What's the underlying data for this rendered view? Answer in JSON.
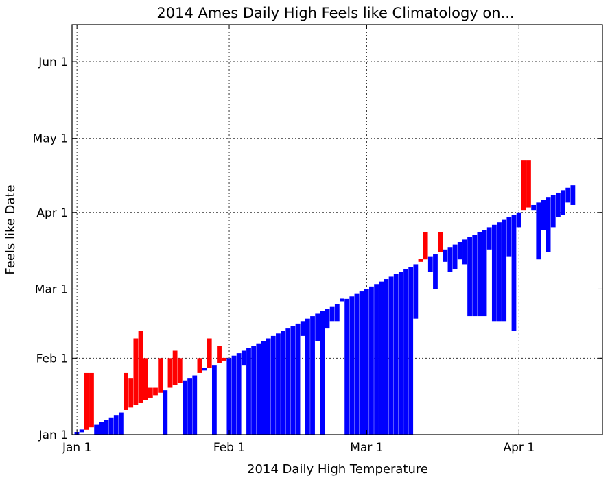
{
  "chart_data": {
    "type": "bar",
    "title": "2014 Ames Daily High Feels like Climatology on...",
    "xlabel": "2014 Daily High Temperature",
    "ylabel": "Feels like Date",
    "x_ticks": [
      "Jan 1",
      "Feb 1",
      "Mar 1",
      "Apr 1"
    ],
    "y_ticks": [
      "Jan 1",
      "Feb 1",
      "Mar 1",
      "Apr 1",
      "May 1",
      "Jun 1"
    ],
    "x_range": [
      "2013-12-31",
      "2014-04-18"
    ],
    "y_range": [
      "2014-01-01",
      "2014-06-16"
    ],
    "grid": true,
    "colors": {
      "warmer": "#ff0000",
      "colder": "#0000ff"
    },
    "series": [
      {
        "name": "Daily High Feels like Date",
        "x_dates": [
          "2014-01-01",
          "2014-01-02",
          "2014-01-03",
          "2014-01-04",
          "2014-01-05",
          "2014-01-06",
          "2014-01-07",
          "2014-01-08",
          "2014-01-09",
          "2014-01-10",
          "2014-01-11",
          "2014-01-12",
          "2014-01-13",
          "2014-01-14",
          "2014-01-15",
          "2014-01-16",
          "2014-01-17",
          "2014-01-18",
          "2014-01-19",
          "2014-01-20",
          "2014-01-21",
          "2014-01-22",
          "2014-01-23",
          "2014-01-24",
          "2014-01-25",
          "2014-01-26",
          "2014-01-27",
          "2014-01-28",
          "2014-01-29",
          "2014-01-30",
          "2014-01-31",
          "2014-02-01",
          "2014-02-02",
          "2014-02-03",
          "2014-02-04",
          "2014-02-05",
          "2014-02-06",
          "2014-02-07",
          "2014-02-08",
          "2014-02-09",
          "2014-02-10",
          "2014-02-11",
          "2014-02-12",
          "2014-02-13",
          "2014-02-14",
          "2014-02-15",
          "2014-02-16",
          "2014-02-17",
          "2014-02-18",
          "2014-02-19",
          "2014-02-20",
          "2014-02-21",
          "2014-02-22",
          "2014-02-23",
          "2014-02-24",
          "2014-02-25",
          "2014-02-26",
          "2014-02-27",
          "2014-02-28",
          "2014-03-01",
          "2014-03-02",
          "2014-03-03",
          "2014-03-04",
          "2014-03-05",
          "2014-03-06",
          "2014-03-07",
          "2014-03-08",
          "2014-03-09",
          "2014-03-10",
          "2014-03-11",
          "2014-03-12",
          "2014-03-13",
          "2014-03-14",
          "2014-03-15",
          "2014-03-16",
          "2014-03-17",
          "2014-03-18",
          "2014-03-19",
          "2014-03-20",
          "2014-03-21",
          "2014-03-22",
          "2014-03-23",
          "2014-03-24",
          "2014-03-25",
          "2014-03-26",
          "2014-03-27",
          "2014-03-28",
          "2014-03-29",
          "2014-03-30",
          "2014-03-31",
          "2014-04-01",
          "2014-04-02",
          "2014-04-03",
          "2014-04-04",
          "2014-04-05",
          "2014-04-06",
          "2014-04-07",
          "2014-04-08",
          "2014-04-09",
          "2014-04-10",
          "2014-04-11",
          "2014-04-12"
        ],
        "feels_like_dates": [
          "2014-01-01",
          "2014-01-02",
          "2014-01-26",
          "2014-01-26",
          "2014-01-01",
          "2014-01-01",
          "2014-01-01",
          "2014-01-01",
          "2014-01-01",
          "2014-01-01",
          "2014-01-26",
          "2014-01-24",
          "2014-02-09",
          "2014-02-12",
          "2014-02-01",
          "2014-01-20",
          "2014-01-20",
          "2014-02-01",
          "2014-01-01",
          "2014-02-01",
          "2014-02-04",
          "2014-02-01",
          "2014-01-01",
          "2014-01-01",
          "2014-01-01",
          "2014-02-01",
          "2014-01-27",
          "2014-02-09",
          "2014-01-01",
          "2014-02-06",
          "2014-02-01",
          "2014-01-01",
          "2014-01-01",
          "2014-01-01",
          "2014-01-29",
          "2014-01-01",
          "2014-01-01",
          "2014-01-01",
          "2014-01-01",
          "2014-01-01",
          "2014-01-01",
          "2014-01-01",
          "2014-01-01",
          "2014-01-01",
          "2014-01-01",
          "2014-01-01",
          "2014-02-10",
          "2014-01-01",
          "2014-01-01",
          "2014-02-08",
          "2014-01-01",
          "2014-02-13",
          "2014-02-16",
          "2014-02-16",
          "2014-02-23",
          "2014-01-01",
          "2014-01-01",
          "2014-01-01",
          "2014-01-01",
          "2014-01-01",
          "2014-01-01",
          "2014-01-01",
          "2014-01-01",
          "2014-01-01",
          "2014-01-01",
          "2014-01-01",
          "2014-01-01",
          "2014-01-01",
          "2014-01-01",
          "2014-02-17",
          "2014-03-13",
          "2014-03-24",
          "2014-03-08",
          "2014-03-01",
          "2014-03-24",
          "2014-03-12",
          "2014-03-08",
          "2014-03-09",
          "2014-03-13",
          "2014-03-11",
          "2014-02-18",
          "2014-02-18",
          "2014-02-18",
          "2014-02-18",
          "2014-03-17",
          "2014-02-16",
          "2014-02-16",
          "2014-02-16",
          "2014-03-14",
          "2014-02-12",
          "2014-03-26",
          "2014-04-22",
          "2014-04-22",
          "2014-04-02",
          "2014-03-13",
          "2014-03-25",
          "2014-03-16",
          "2014-03-26",
          "2014-03-30",
          "2014-03-31",
          "2014-04-05",
          "2014-04-04"
        ]
      }
    ]
  }
}
